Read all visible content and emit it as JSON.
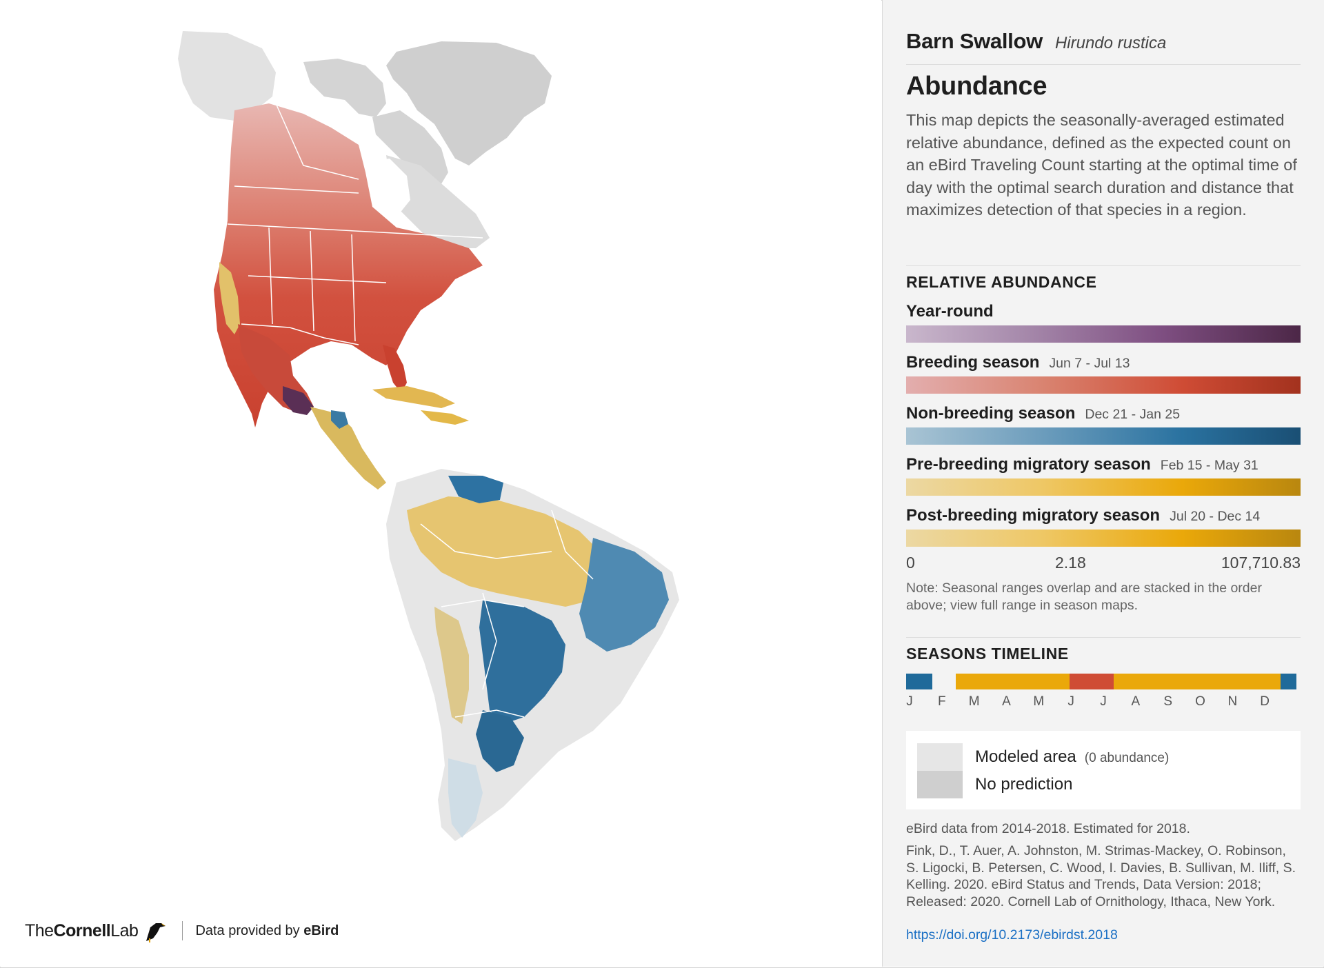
{
  "header": {
    "common_name": "Barn Swallow",
    "scientific_name": "Hirundo rustica"
  },
  "section": {
    "title": "Abundance",
    "description": "This map depicts the seasonally-averaged estimated relative abundance, defined as the expected count on an eBird Traveling Count starting at the optimal time of day with the optimal search duration and distance that maximizes detection of that species in a region."
  },
  "relative_abundance": {
    "heading": "RELATIVE ABUNDANCE",
    "seasons": [
      {
        "label": "Year-round",
        "dates": "",
        "color": "#4c2747"
      },
      {
        "label": "Breeding season",
        "dates": "Jun 7 - Jul 13",
        "color": "#cf4c35"
      },
      {
        "label": "Non-breeding season",
        "dates": "Dec 21 - Jan 25",
        "color": "#1f6a9a"
      },
      {
        "label": "Pre-breeding migratory season",
        "dates": "Feb 15 - May 31",
        "color": "#eaa80a"
      },
      {
        "label": "Post-breeding migratory season",
        "dates": "Jul 20 - Dec 14",
        "color": "#eaa80a"
      }
    ],
    "scale": {
      "min": "0",
      "mid": "2.18",
      "max": "107,710.83"
    },
    "note": "Note: Seasonal ranges overlap and are stacked in the order above; view full range in season maps."
  },
  "timeline": {
    "heading": "SEASONS TIMELINE",
    "months": [
      "J",
      "F",
      "M",
      "A",
      "M",
      "J",
      "J",
      "A",
      "S",
      "O",
      "N",
      "D"
    ],
    "segments": [
      {
        "season": "non-breeding",
        "start": 0.0,
        "end": 0.066,
        "color": "#1f6a9a"
      },
      {
        "season": "pre-breeding",
        "start": 0.125,
        "end": 0.414,
        "color": "#eaa80a"
      },
      {
        "season": "breeding",
        "start": 0.414,
        "end": 0.526,
        "color": "#cf4c35"
      },
      {
        "season": "post-breeding",
        "start": 0.526,
        "end": 0.95,
        "color": "#eaa80a"
      },
      {
        "season": "non-breeding",
        "start": 0.95,
        "end": 0.99,
        "color": "#1f6a9a"
      }
    ]
  },
  "legend": {
    "modeled_label": "Modeled area",
    "modeled_sub": "(0 abundance)",
    "no_prediction_label": "No prediction"
  },
  "attribution": {
    "data_years": "eBird data from 2014-2018. Estimated for 2018.",
    "citation": "Fink, D., T. Auer, A. Johnston, M. Strimas-Mackey, O. Robinson, S. Ligocki, B. Petersen, C. Wood, I. Davies, B. Sullivan, M. Iliff, S. Kelling. 2020. eBird Status and Trends, Data Version: 2018; Released: 2020. Cornell Lab of Ornithology, Ithaca, New York.",
    "doi": "https://doi.org/10.2173/ebirdst.2018"
  },
  "footer": {
    "brand_the": "The",
    "brand_cornell": "Cornell",
    "brand_lab": "Lab",
    "data_provided_prefix": "Data provided by",
    "data_provided_brand": "eBird"
  }
}
